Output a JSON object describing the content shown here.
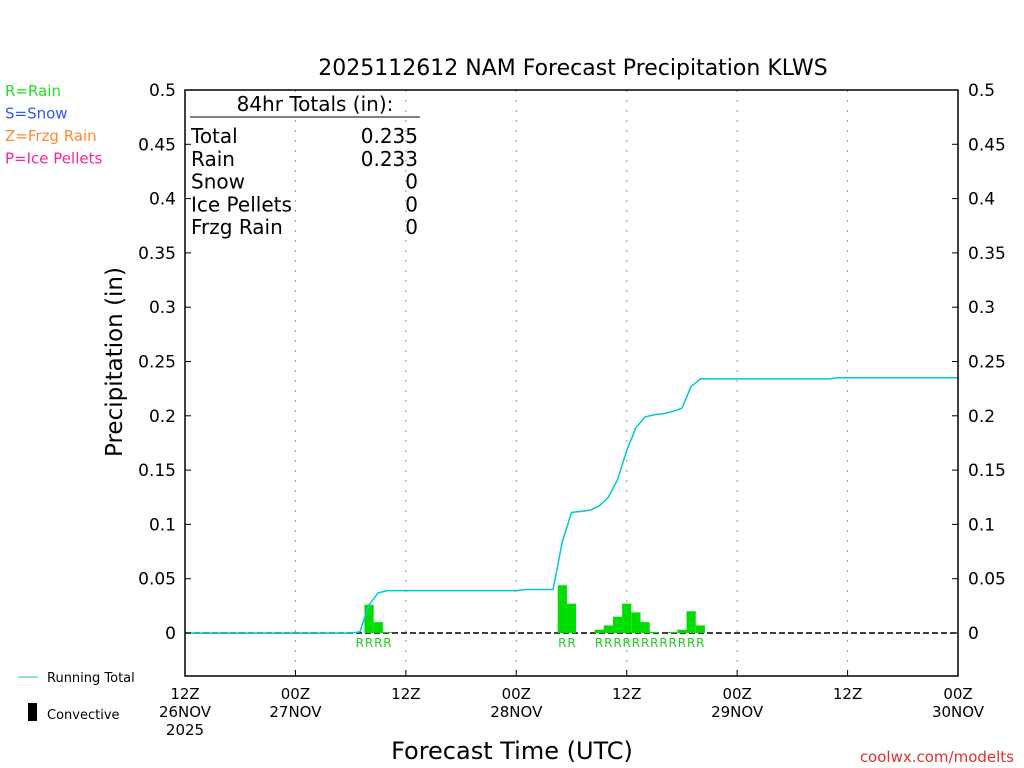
{
  "chart_data": {
    "type": "bar+line",
    "title": "2025112612 NAM Forecast Precipitation KLWS",
    "xlabel": "Forecast Time (UTC)",
    "ylabel": "Precipitation  (in)",
    "ylim": [
      -0.04,
      0.5
    ],
    "xlim_hours": [
      0,
      84
    ],
    "yticks": [
      "0",
      "0.05",
      "0.1",
      "0.15",
      "0.2",
      "0.25",
      "0.3",
      "0.35",
      "0.4",
      "0.45",
      "0.5"
    ],
    "xticks": [
      {
        "hour": 0,
        "lines": [
          "12Z",
          "26NOV",
          "2025"
        ]
      },
      {
        "hour": 12,
        "lines": [
          "00Z",
          "27NOV"
        ]
      },
      {
        "hour": 24,
        "lines": [
          "12Z"
        ]
      },
      {
        "hour": 36,
        "lines": [
          "00Z",
          "28NOV"
        ]
      },
      {
        "hour": 48,
        "lines": [
          "12Z"
        ]
      },
      {
        "hour": 60,
        "lines": [
          "00Z",
          "29NOV"
        ]
      },
      {
        "hour": 72,
        "lines": [
          "12Z"
        ]
      },
      {
        "hour": 84,
        "lines": [
          "00Z",
          "30NOV"
        ]
      }
    ],
    "type_legend": [
      {
        "label": "R=Rain",
        "color": "#22dd22"
      },
      {
        "label": "S=Snow",
        "color": "#3355ff"
      },
      {
        "label": "Z=Frzg Rain",
        "color": "#ff8833"
      },
      {
        "label": "P=Ice Pellets",
        "color": "#ff2299"
      }
    ],
    "series_legend": {
      "running_total": "Running Total",
      "convective": "Convective"
    },
    "bars": {
      "hours": [
        19,
        20,
        21,
        22,
        41,
        42,
        45,
        46,
        47,
        48,
        49,
        50,
        51,
        52,
        53,
        54,
        55,
        56
      ],
      "values": [
        0.0,
        0.026,
        0.01,
        0.001,
        0.044,
        0.027,
        0.003,
        0.007,
        0.015,
        0.027,
        0.019,
        0.01,
        0.001,
        0.0,
        0.001,
        0.003,
        0.02,
        0.007
      ],
      "type": "R",
      "color": "#00dd00"
    },
    "running_total": {
      "color": "#00c8d0",
      "points": [
        [
          0,
          0
        ],
        [
          18,
          0
        ],
        [
          19,
          0.001
        ],
        [
          20,
          0.026
        ],
        [
          21,
          0.037
        ],
        [
          22,
          0.039
        ],
        [
          33,
          0.039
        ],
        [
          36,
          0.039
        ],
        [
          37,
          0.04
        ],
        [
          40,
          0.04
        ],
        [
          41,
          0.084
        ],
        [
          42,
          0.111
        ],
        [
          43,
          0.112
        ],
        [
          44,
          0.113
        ],
        [
          45,
          0.117
        ],
        [
          46,
          0.125
        ],
        [
          47,
          0.141
        ],
        [
          48,
          0.168
        ],
        [
          49,
          0.189
        ],
        [
          50,
          0.199
        ],
        [
          51,
          0.201
        ],
        [
          52,
          0.202
        ],
        [
          53,
          0.204
        ],
        [
          54,
          0.207
        ],
        [
          55,
          0.227
        ],
        [
          56,
          0.234
        ],
        [
          70,
          0.234
        ],
        [
          71,
          0.235
        ],
        [
          84,
          0.235
        ]
      ]
    },
    "totals_box": {
      "header": "84hr Totals (in):",
      "rows": [
        [
          "Total",
          "0.235"
        ],
        [
          "Rain",
          "0.233"
        ],
        [
          "Snow",
          "0"
        ],
        [
          "Ice Pellets",
          "0"
        ],
        [
          "Frzg Rain",
          "0"
        ]
      ]
    },
    "credit": "coolwx.com/modelts"
  }
}
